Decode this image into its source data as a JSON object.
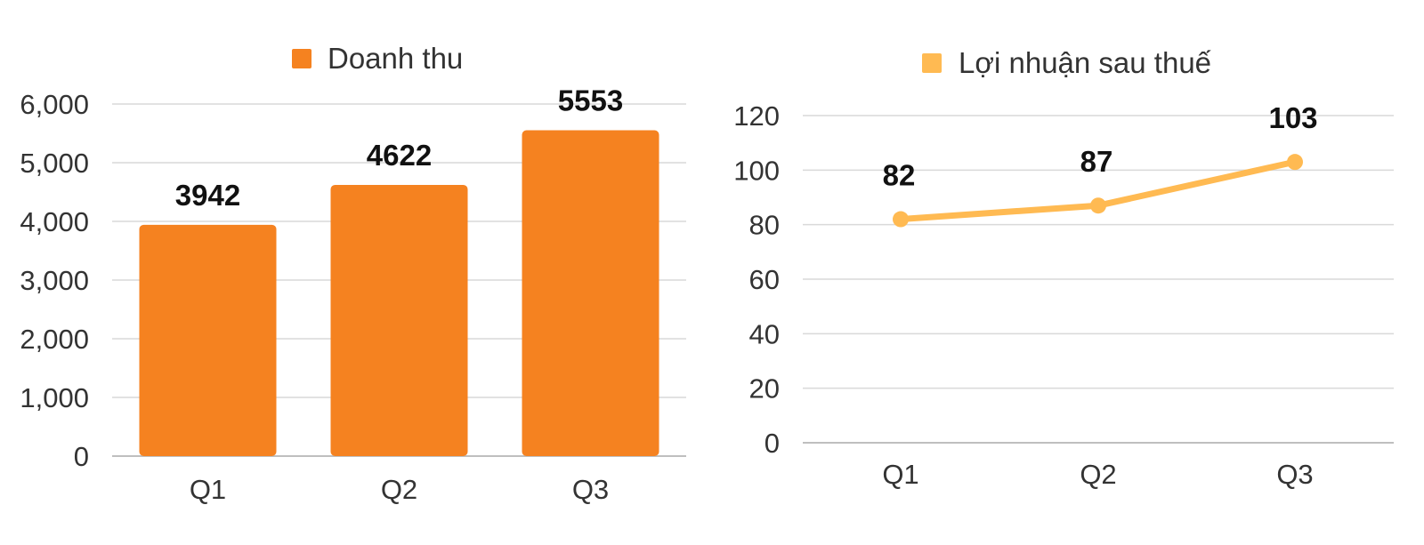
{
  "chart_data": [
    {
      "type": "bar",
      "categories": [
        "Q1",
        "Q2",
        "Q3"
      ],
      "series": [
        {
          "name": "Doanh thu",
          "values": [
            3942,
            4622,
            5553
          ]
        }
      ],
      "data_labels": [
        "3942",
        "4622",
        "5553"
      ],
      "y_ticks": [
        "0",
        "1,000",
        "2,000",
        "3,000",
        "4,000",
        "5,000",
        "6,000"
      ],
      "ylim": [
        0,
        6000
      ],
      "y_step": 1000,
      "grid": true,
      "legend_position": "top",
      "colors": {
        "series": "#F58220",
        "grid": "#d9d9d9",
        "axis": "#bfbfbf"
      }
    },
    {
      "type": "line",
      "categories": [
        "Q1",
        "Q2",
        "Q3"
      ],
      "series": [
        {
          "name": "Lợi nhuận sau thuế",
          "values": [
            82,
            87,
            103
          ]
        }
      ],
      "data_labels": [
        "82",
        "87",
        "103"
      ],
      "y_ticks": [
        "0",
        "20",
        "40",
        "60",
        "80",
        "100",
        "120"
      ],
      "ylim": [
        0,
        120
      ],
      "y_step": 20,
      "grid": true,
      "legend_position": "top",
      "colors": {
        "series": "#FFBA52",
        "grid": "#d9d9d9",
        "axis": "#bfbfbf"
      }
    }
  ]
}
